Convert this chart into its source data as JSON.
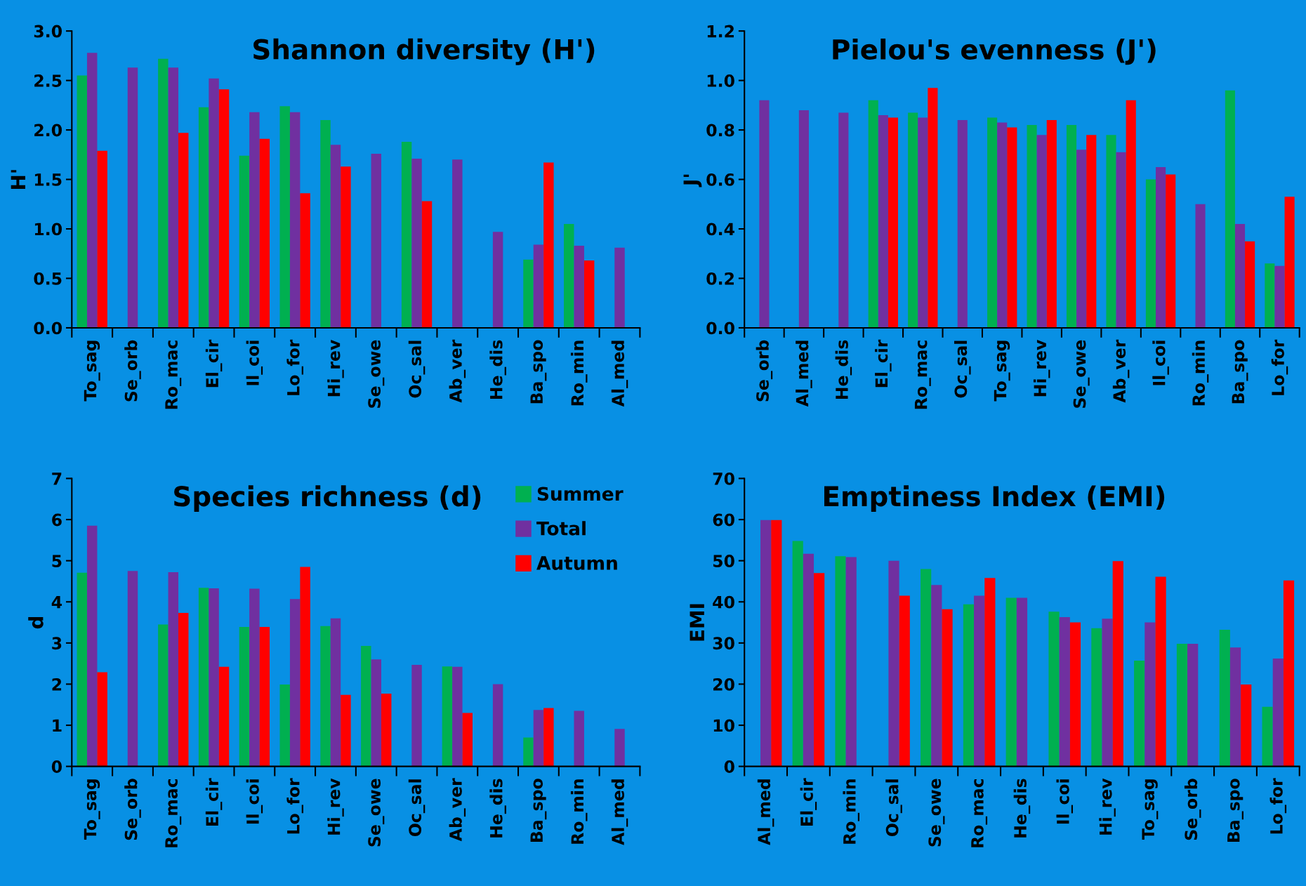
{
  "chart_data": [
    {
      "type": "bar",
      "title": "Shannon diversity (H')",
      "ylabel": "H'",
      "categories": [
        "To_sag",
        "Se_orb",
        "Ro_mac",
        "El_cir",
        "Il_coi",
        "Lo_for",
        "Hi_rev",
        "Se_owe",
        "Oc_sal",
        "Ab_ver",
        "He_dis",
        "Ba_spo",
        "Ro_min",
        "Al_med"
      ],
      "ylim": [
        0,
        3
      ],
      "yticks": [
        {
          "value": 0,
          "label": "0.0"
        },
        {
          "value": 0.5,
          "label": "0.5"
        },
        {
          "value": 1,
          "label": "1.0"
        },
        {
          "value": 1.5,
          "label": "1.5"
        },
        {
          "value": 2,
          "label": "2.0"
        },
        {
          "value": 2.5,
          "label": "2.5"
        },
        {
          "value": 3,
          "label": "3.0"
        }
      ],
      "series": [
        {
          "color": "#00b050",
          "values": [
            2.55,
            null,
            2.72,
            2.23,
            1.74,
            2.24,
            2.1,
            null,
            1.88,
            null,
            null,
            0.69,
            1.05,
            null
          ]
        },
        {
          "color": "#7030a0",
          "values": [
            2.78,
            2.63,
            2.63,
            2.52,
            2.18,
            2.18,
            1.85,
            1.76,
            1.71,
            1.7,
            0.97,
            0.84,
            0.83,
            0.81
          ]
        },
        {
          "color": "#ff0000",
          "values": [
            1.79,
            null,
            1.97,
            2.41,
            1.91,
            1.36,
            1.63,
            null,
            1.28,
            null,
            null,
            1.67,
            0.68,
            null
          ]
        }
      ]
    },
    {
      "type": "bar",
      "title": "Pielou's evenness (J')",
      "ylabel": "J'",
      "categories": [
        "Se_orb",
        "Al_med",
        "He_dis",
        "El_cir",
        "Ro_mac",
        "Oc_sal",
        "To_sag",
        "Hi_rev",
        "Se_owe",
        "Ab_ver",
        "Il_coi",
        "Ro_min",
        "Ba_spo",
        "Lo_for"
      ],
      "ylim": [
        0,
        1.2
      ],
      "yticks": [
        {
          "value": 0,
          "label": "0.0"
        },
        {
          "value": 0.2,
          "label": "0.2"
        },
        {
          "value": 0.4,
          "label": "0.4"
        },
        {
          "value": 0.6,
          "label": "0.6"
        },
        {
          "value": 0.8,
          "label": "0.8"
        },
        {
          "value": 1,
          "label": "1.0"
        },
        {
          "value": 1.2,
          "label": "1.2"
        }
      ],
      "series": [
        {
          "color": "#00b050",
          "values": [
            null,
            null,
            null,
            0.92,
            0.87,
            null,
            0.85,
            0.82,
            0.82,
            0.78,
            0.6,
            null,
            0.96,
            0.26
          ]
        },
        {
          "color": "#7030a0",
          "values": [
            0.92,
            0.88,
            0.87,
            0.86,
            0.85,
            0.84,
            0.83,
            0.78,
            0.72,
            0.71,
            0.65,
            0.5,
            0.42,
            0.25
          ]
        },
        {
          "color": "#ff0000",
          "values": [
            null,
            null,
            null,
            0.85,
            0.97,
            null,
            0.81,
            0.84,
            0.78,
            0.92,
            0.62,
            null,
            0.35,
            0.53
          ]
        }
      ]
    },
    {
      "type": "bar",
      "title": "Species richness (d)",
      "ylabel": "d",
      "legend": "top right",
      "categories": [
        "To_sag",
        "Se_orb",
        "Ro_mac",
        "El_cir",
        "Il_coi",
        "Lo_for",
        "Hi_rev",
        "Se_owe",
        "Oc_sal",
        "Ab_ver",
        "He_dis",
        "Ba_spo",
        "Ro_min",
        "Al_med"
      ],
      "ylim": [
        0,
        7
      ],
      "yticks": [
        0,
        1,
        2,
        3,
        4,
        5,
        6,
        7
      ],
      "series": [
        {
          "name": "Summer",
          "color": "#00b050",
          "values": [
            4.71,
            null,
            3.45,
            4.34,
            3.39,
            1.99,
            3.41,
            2.93,
            null,
            2.43,
            null,
            0.7,
            null,
            null
          ]
        },
        {
          "name": "Total",
          "color": "#7030a0",
          "values": [
            5.85,
            4.75,
            4.72,
            4.33,
            4.32,
            4.07,
            3.6,
            2.6,
            2.47,
            2.42,
            2.0,
            1.37,
            1.35,
            0.91
          ]
        },
        {
          "name": "Autumn",
          "color": "#ff0000",
          "values": [
            2.29,
            null,
            3.73,
            2.42,
            3.39,
            4.85,
            1.74,
            1.77,
            null,
            1.3,
            null,
            1.42,
            null,
            null
          ]
        }
      ]
    },
    {
      "type": "bar",
      "title": "Emptiness Index (EMI)",
      "ylabel": "EMI",
      "categories": [
        "Al_med",
        "El_cir",
        "Ro_min",
        "Oc_sal",
        "Se_owe",
        "Ro_mac",
        "He_dis",
        "Il_coi",
        "Hi_rev",
        "To_sag",
        "Se_orb",
        "Ba_spo",
        "Lo_for"
      ],
      "ylim": [
        0,
        70
      ],
      "yticks": [
        0,
        10,
        20,
        30,
        40,
        50,
        60,
        70
      ],
      "series": [
        {
          "color": "#00b050",
          "values": [
            null,
            54.8,
            51.1,
            null,
            48.0,
            39.4,
            41.0,
            37.6,
            33.6,
            25.7,
            29.8,
            33.2,
            14.5
          ]
        },
        {
          "color": "#7030a0",
          "values": [
            59.9,
            51.7,
            50.9,
            50.0,
            44.1,
            41.5,
            41.0,
            36.3,
            35.9,
            35.0,
            29.8,
            28.9,
            26.2
          ]
        },
        {
          "color": "#ff0000",
          "values": [
            59.9,
            47.0,
            null,
            41.5,
            38.2,
            45.8,
            null,
            35.0,
            49.9,
            46.1,
            null,
            19.9,
            45.2
          ]
        }
      ]
    }
  ]
}
